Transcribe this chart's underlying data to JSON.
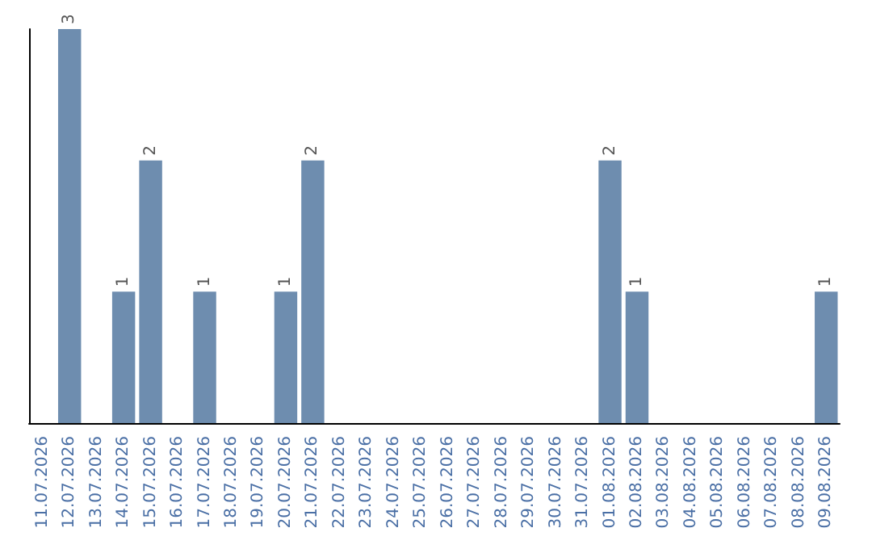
{
  "chart_data": {
    "type": "bar",
    "categories": [
      "11.07.2026",
      "12.07.2026",
      "13.07.2026",
      "14.07.2026",
      "15.07.2026",
      "16.07.2026",
      "17.07.2026",
      "18.07.2026",
      "19.07.2026",
      "20.07.2026",
      "21.07.2026",
      "22.07.2026",
      "23.07.2026",
      "24.07.2026",
      "25.07.2026",
      "26.07.2026",
      "27.07.2026",
      "28.07.2026",
      "29.07.2026",
      "30.07.2026",
      "31.07.2026",
      "01.08.2026",
      "02.08.2026",
      "03.08.2026",
      "04.08.2026",
      "05.08.2026",
      "06.08.2026",
      "07.08.2026",
      "08.08.2026",
      "09.08.2026"
    ],
    "values": [
      0,
      3,
      0,
      1,
      2,
      0,
      1,
      0,
      0,
      1,
      2,
      0,
      0,
      0,
      0,
      0,
      0,
      0,
      0,
      0,
      0,
      2,
      1,
      0,
      0,
      0,
      0,
      0,
      0,
      1
    ],
    "value_labels": [
      null,
      "3",
      null,
      "1",
      "2",
      null,
      "1",
      null,
      null,
      "1",
      "2",
      null,
      null,
      null,
      null,
      null,
      null,
      null,
      null,
      null,
      null,
      "2",
      "1",
      null,
      null,
      null,
      null,
      null,
      null,
      "1"
    ],
    "color": "#6e8daf",
    "ylim": [
      0,
      3
    ],
    "tick_labels": "x"
  }
}
